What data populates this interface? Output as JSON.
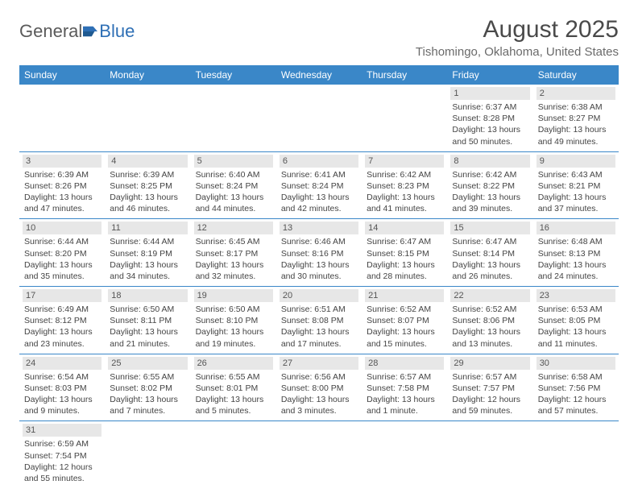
{
  "brand": {
    "part1": "General",
    "part2": "Blue"
  },
  "title": "August 2025",
  "location": "Tishomingo, Oklahoma, United States",
  "colors": {
    "header_bg": "#3a87c8",
    "header_text": "#ffffff",
    "daynum_bg": "#e7e7e7",
    "row_divider": "#3a87c8",
    "title_color": "#4a4a4a",
    "location_color": "#6a6a6a"
  },
  "weekdays": [
    "Sunday",
    "Monday",
    "Tuesday",
    "Wednesday",
    "Thursday",
    "Friday",
    "Saturday"
  ],
  "weeks": [
    [
      null,
      null,
      null,
      null,
      null,
      {
        "n": "1",
        "sr": "Sunrise: 6:37 AM",
        "ss": "Sunset: 8:28 PM",
        "dl": "Daylight: 13 hours and 50 minutes."
      },
      {
        "n": "2",
        "sr": "Sunrise: 6:38 AM",
        "ss": "Sunset: 8:27 PM",
        "dl": "Daylight: 13 hours and 49 minutes."
      }
    ],
    [
      {
        "n": "3",
        "sr": "Sunrise: 6:39 AM",
        "ss": "Sunset: 8:26 PM",
        "dl": "Daylight: 13 hours and 47 minutes."
      },
      {
        "n": "4",
        "sr": "Sunrise: 6:39 AM",
        "ss": "Sunset: 8:25 PM",
        "dl": "Daylight: 13 hours and 46 minutes."
      },
      {
        "n": "5",
        "sr": "Sunrise: 6:40 AM",
        "ss": "Sunset: 8:24 PM",
        "dl": "Daylight: 13 hours and 44 minutes."
      },
      {
        "n": "6",
        "sr": "Sunrise: 6:41 AM",
        "ss": "Sunset: 8:24 PM",
        "dl": "Daylight: 13 hours and 42 minutes."
      },
      {
        "n": "7",
        "sr": "Sunrise: 6:42 AM",
        "ss": "Sunset: 8:23 PM",
        "dl": "Daylight: 13 hours and 41 minutes."
      },
      {
        "n": "8",
        "sr": "Sunrise: 6:42 AM",
        "ss": "Sunset: 8:22 PM",
        "dl": "Daylight: 13 hours and 39 minutes."
      },
      {
        "n": "9",
        "sr": "Sunrise: 6:43 AM",
        "ss": "Sunset: 8:21 PM",
        "dl": "Daylight: 13 hours and 37 minutes."
      }
    ],
    [
      {
        "n": "10",
        "sr": "Sunrise: 6:44 AM",
        "ss": "Sunset: 8:20 PM",
        "dl": "Daylight: 13 hours and 35 minutes."
      },
      {
        "n": "11",
        "sr": "Sunrise: 6:44 AM",
        "ss": "Sunset: 8:19 PM",
        "dl": "Daylight: 13 hours and 34 minutes."
      },
      {
        "n": "12",
        "sr": "Sunrise: 6:45 AM",
        "ss": "Sunset: 8:17 PM",
        "dl": "Daylight: 13 hours and 32 minutes."
      },
      {
        "n": "13",
        "sr": "Sunrise: 6:46 AM",
        "ss": "Sunset: 8:16 PM",
        "dl": "Daylight: 13 hours and 30 minutes."
      },
      {
        "n": "14",
        "sr": "Sunrise: 6:47 AM",
        "ss": "Sunset: 8:15 PM",
        "dl": "Daylight: 13 hours and 28 minutes."
      },
      {
        "n": "15",
        "sr": "Sunrise: 6:47 AM",
        "ss": "Sunset: 8:14 PM",
        "dl": "Daylight: 13 hours and 26 minutes."
      },
      {
        "n": "16",
        "sr": "Sunrise: 6:48 AM",
        "ss": "Sunset: 8:13 PM",
        "dl": "Daylight: 13 hours and 24 minutes."
      }
    ],
    [
      {
        "n": "17",
        "sr": "Sunrise: 6:49 AM",
        "ss": "Sunset: 8:12 PM",
        "dl": "Daylight: 13 hours and 23 minutes."
      },
      {
        "n": "18",
        "sr": "Sunrise: 6:50 AM",
        "ss": "Sunset: 8:11 PM",
        "dl": "Daylight: 13 hours and 21 minutes."
      },
      {
        "n": "19",
        "sr": "Sunrise: 6:50 AM",
        "ss": "Sunset: 8:10 PM",
        "dl": "Daylight: 13 hours and 19 minutes."
      },
      {
        "n": "20",
        "sr": "Sunrise: 6:51 AM",
        "ss": "Sunset: 8:08 PM",
        "dl": "Daylight: 13 hours and 17 minutes."
      },
      {
        "n": "21",
        "sr": "Sunrise: 6:52 AM",
        "ss": "Sunset: 8:07 PM",
        "dl": "Daylight: 13 hours and 15 minutes."
      },
      {
        "n": "22",
        "sr": "Sunrise: 6:52 AM",
        "ss": "Sunset: 8:06 PM",
        "dl": "Daylight: 13 hours and 13 minutes."
      },
      {
        "n": "23",
        "sr": "Sunrise: 6:53 AM",
        "ss": "Sunset: 8:05 PM",
        "dl": "Daylight: 13 hours and 11 minutes."
      }
    ],
    [
      {
        "n": "24",
        "sr": "Sunrise: 6:54 AM",
        "ss": "Sunset: 8:03 PM",
        "dl": "Daylight: 13 hours and 9 minutes."
      },
      {
        "n": "25",
        "sr": "Sunrise: 6:55 AM",
        "ss": "Sunset: 8:02 PM",
        "dl": "Daylight: 13 hours and 7 minutes."
      },
      {
        "n": "26",
        "sr": "Sunrise: 6:55 AM",
        "ss": "Sunset: 8:01 PM",
        "dl": "Daylight: 13 hours and 5 minutes."
      },
      {
        "n": "27",
        "sr": "Sunrise: 6:56 AM",
        "ss": "Sunset: 8:00 PM",
        "dl": "Daylight: 13 hours and 3 minutes."
      },
      {
        "n": "28",
        "sr": "Sunrise: 6:57 AM",
        "ss": "Sunset: 7:58 PM",
        "dl": "Daylight: 13 hours and 1 minute."
      },
      {
        "n": "29",
        "sr": "Sunrise: 6:57 AM",
        "ss": "Sunset: 7:57 PM",
        "dl": "Daylight: 12 hours and 59 minutes."
      },
      {
        "n": "30",
        "sr": "Sunrise: 6:58 AM",
        "ss": "Sunset: 7:56 PM",
        "dl": "Daylight: 12 hours and 57 minutes."
      }
    ],
    [
      {
        "n": "31",
        "sr": "Sunrise: 6:59 AM",
        "ss": "Sunset: 7:54 PM",
        "dl": "Daylight: 12 hours and 55 minutes."
      },
      null,
      null,
      null,
      null,
      null,
      null
    ]
  ]
}
